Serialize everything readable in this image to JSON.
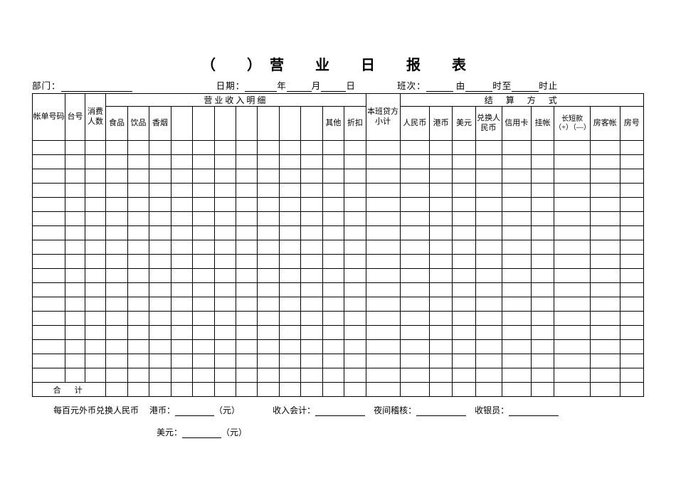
{
  "title": "（　）营　业　日　报　表",
  "header": {
    "dept_label": "部门：",
    "date_label": "日期：",
    "year": "年",
    "month": "月",
    "day": "日",
    "shift_label": "班次：",
    "shift_from": "由",
    "shift_to1": "时至",
    "shift_to2": "时止"
  },
  "groups": {
    "income": "营业收入明细",
    "settle": "结　算　方　式"
  },
  "cols": {
    "c0": "帐单号码",
    "c1": "台号",
    "c2": "消费人数",
    "c3": "食品",
    "c4": "饮品",
    "c5": "香烟",
    "c6": "",
    "c7": "",
    "c8": "",
    "c9": "",
    "c10": "",
    "c11": "",
    "c12": "",
    "c13": "其他",
    "c14": "折扣",
    "c15": "本班贷方小计",
    "c16": "人民币",
    "c17": "港币",
    "c18": "美元",
    "c19": "兑换人民币",
    "c20": "信用卡",
    "c21": "挂帐",
    "c22": "长短款（+）（—）",
    "c23": "房客帐",
    "c24": "房号"
  },
  "total_label": "合　计",
  "footer1": {
    "exch_label": "每百元外币兑换人民币",
    "hkd": "港币：",
    "yuan": "（元）",
    "income_acc": "收入会计：",
    "night_audit": "夜间稽核：",
    "cashier": "收银员："
  },
  "footer2": {
    "usd": "美元：",
    "yuan": "（元）"
  },
  "style": {
    "background": "#ffffff",
    "border_color": "#000000",
    "title_fontsize": 20,
    "body_fontsize": 12,
    "cell_fontsize": 11,
    "data_rows": 17,
    "num_cols": 25
  }
}
